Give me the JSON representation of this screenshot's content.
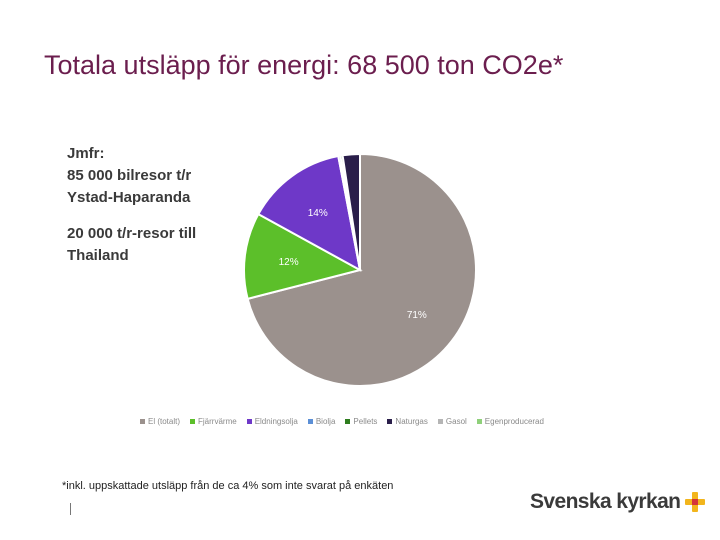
{
  "slide": {
    "title": "Totala utsläpp för energi: 68 500 ton CO2e*",
    "comparison_lines": [
      "Jmfr:",
      "85 000 bilresor t/r",
      "Ystad-Haparanda",
      "20 000 t/r-resor till",
      "Thailand"
    ],
    "footnote": "*inkl. uppskattade utsläpp från de ca 4% som inte svarat på enkäten",
    "logo_text": "Svenska kyrkan"
  },
  "colors": {
    "title": "#6b1e4e",
    "el": "#9b918d",
    "fjarrvarme": "#5cbf2a",
    "eldningsolja": "#6e38c8",
    "biolja": "#5b8fd6",
    "pellets": "#2e7d1e",
    "naturgas": "#2a1e4a",
    "gasol": "#b5b5b5",
    "egenproducerad": "#8fd07a",
    "logo_yellow": "#f2b51c",
    "logo_red": "#d4343a"
  },
  "chart_data": {
    "type": "pie",
    "legend_position": "bottom",
    "series": [
      {
        "name": "El (totalt)",
        "value": 71,
        "label": "71%"
      },
      {
        "name": "Fjärrvärme",
        "value": 12,
        "label": "12%"
      },
      {
        "name": "Eldningsolja",
        "value": 14,
        "label": "14%"
      },
      {
        "name": "Biolja",
        "value": 0.3,
        "label": ""
      },
      {
        "name": "Pellets",
        "value": 0.3,
        "label": ""
      },
      {
        "name": "Naturgas",
        "value": 2.4,
        "label": ""
      },
      {
        "name": "Gasol",
        "value": 0,
        "label": ""
      },
      {
        "name": "Egenproducerad",
        "value": 0,
        "label": ""
      }
    ]
  }
}
